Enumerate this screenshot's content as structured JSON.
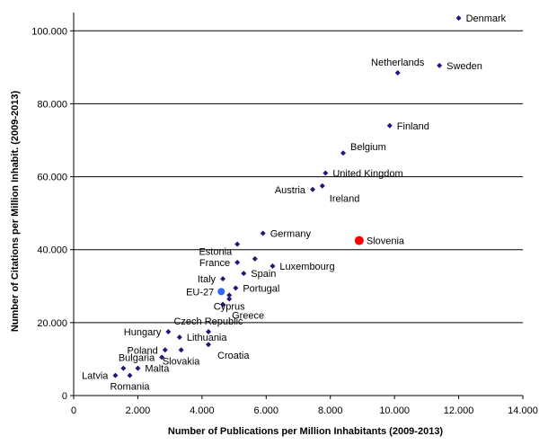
{
  "chart_data": {
    "type": "scatter",
    "xlabel": "Number of Publications per Million Inhabitants (2009-2013)",
    "ylabel": "Number of Citations per Million Inhabit. (2009-2013)",
    "xlim": [
      0,
      14000
    ],
    "ylim": [
      0,
      105000
    ],
    "x_ticks": [
      0,
      2000,
      4000,
      6000,
      8000,
      10000,
      12000,
      14000
    ],
    "x_tick_labels": [
      "0",
      "2.000",
      "4.000",
      "6.000",
      "8.000",
      "10.000",
      "12.000",
      "14.000"
    ],
    "y_ticks": [
      0,
      20000,
      40000,
      60000,
      80000,
      100000
    ],
    "y_tick_labels": [
      "0",
      "20.000",
      "40.000",
      "60.000",
      "80.000",
      "100.000"
    ],
    "grid": "horizontal",
    "colors": {
      "default_point": "#1f1a7a",
      "slovenia": "#ff0000",
      "eu27": "#3366ff",
      "grid": "#000000"
    },
    "points": [
      {
        "label": "Denmark",
        "x": 12000,
        "y": 103500,
        "label_pos": "right"
      },
      {
        "label": "Netherlands",
        "x": 10100,
        "y": 88500,
        "label_pos": "above"
      },
      {
        "label": "Sweden",
        "x": 11400,
        "y": 90500,
        "label_pos": "right"
      },
      {
        "label": "Finland",
        "x": 9850,
        "y": 74000,
        "label_pos": "right"
      },
      {
        "label": "Belgium",
        "x": 8400,
        "y": 66500,
        "label_pos": "right-up"
      },
      {
        "label": "United Kingdom",
        "x": 7850,
        "y": 61000,
        "label_pos": "right"
      },
      {
        "label": "Austria",
        "x": 7450,
        "y": 56500,
        "label_pos": "left"
      },
      {
        "label": "Ireland",
        "x": 7750,
        "y": 57500,
        "label_pos": "below-right"
      },
      {
        "label": "Germany",
        "x": 5900,
        "y": 44500,
        "label_pos": "right"
      },
      {
        "label": "Estonia",
        "x": 5100,
        "y": 41500,
        "label_pos": "left-below"
      },
      {
        "label": "Slovenia",
        "x": 8900,
        "y": 42500,
        "label_pos": "right",
        "highlight": "slovenia"
      },
      {
        "label": "Luxembourg",
        "x": 6200,
        "y": 35500,
        "label_pos": "right"
      },
      {
        "label": "France",
        "x": 5100,
        "y": 36500,
        "label_pos": "left"
      },
      {
        "label": "Spain",
        "x": 5300,
        "y": 33500,
        "label_pos": "right"
      },
      {
        "label": "Italy",
        "x": 4650,
        "y": 32000,
        "label_pos": "left"
      },
      {
        "label": "EU-27",
        "x": 4600,
        "y": 28500,
        "label_pos": "left",
        "highlight": "eu27"
      },
      {
        "label": "Portugal",
        "x": 5050,
        "y": 29500,
        "label_pos": "right"
      },
      {
        "label": "Greece",
        "x": 4650,
        "y": 25000,
        "label_pos": "right-below"
      },
      {
        "label": "Czech Republic",
        "x": 4200,
        "y": 17500,
        "label_pos": "above"
      },
      {
        "label": "Cyprus",
        "x": 4850,
        "y": 27500,
        "label_pos": "below"
      },
      {
        "label": "Hungary",
        "x": 2950,
        "y": 17500,
        "label_pos": "left"
      },
      {
        "label": "Lithuania",
        "x": 3300,
        "y": 16000,
        "label_pos": "right"
      },
      {
        "label": "Croatia",
        "x": 4200,
        "y": 14000,
        "label_pos": "right-below"
      },
      {
        "label": "Poland",
        "x": 2850,
        "y": 12500,
        "label_pos": "left"
      },
      {
        "label": "Slovakia",
        "x": 3350,
        "y": 12500,
        "label_pos": "below"
      },
      {
        "label": "Bulgaria",
        "x": 2750,
        "y": 10500,
        "label_pos": "left"
      },
      {
        "label": "Malta",
        "x": 2000,
        "y": 7500,
        "label_pos": "right"
      },
      {
        "label": "Latvia",
        "x": 1300,
        "y": 5500,
        "label_pos": "left"
      },
      {
        "label": "Romania",
        "x": 1750,
        "y": 5500,
        "label_pos": "below"
      }
    ],
    "extra_points": [
      {
        "x": 1550,
        "y": 7500
      },
      {
        "x": 4850,
        "y": 26500
      },
      {
        "x": 5650,
        "y": 37500
      }
    ]
  }
}
